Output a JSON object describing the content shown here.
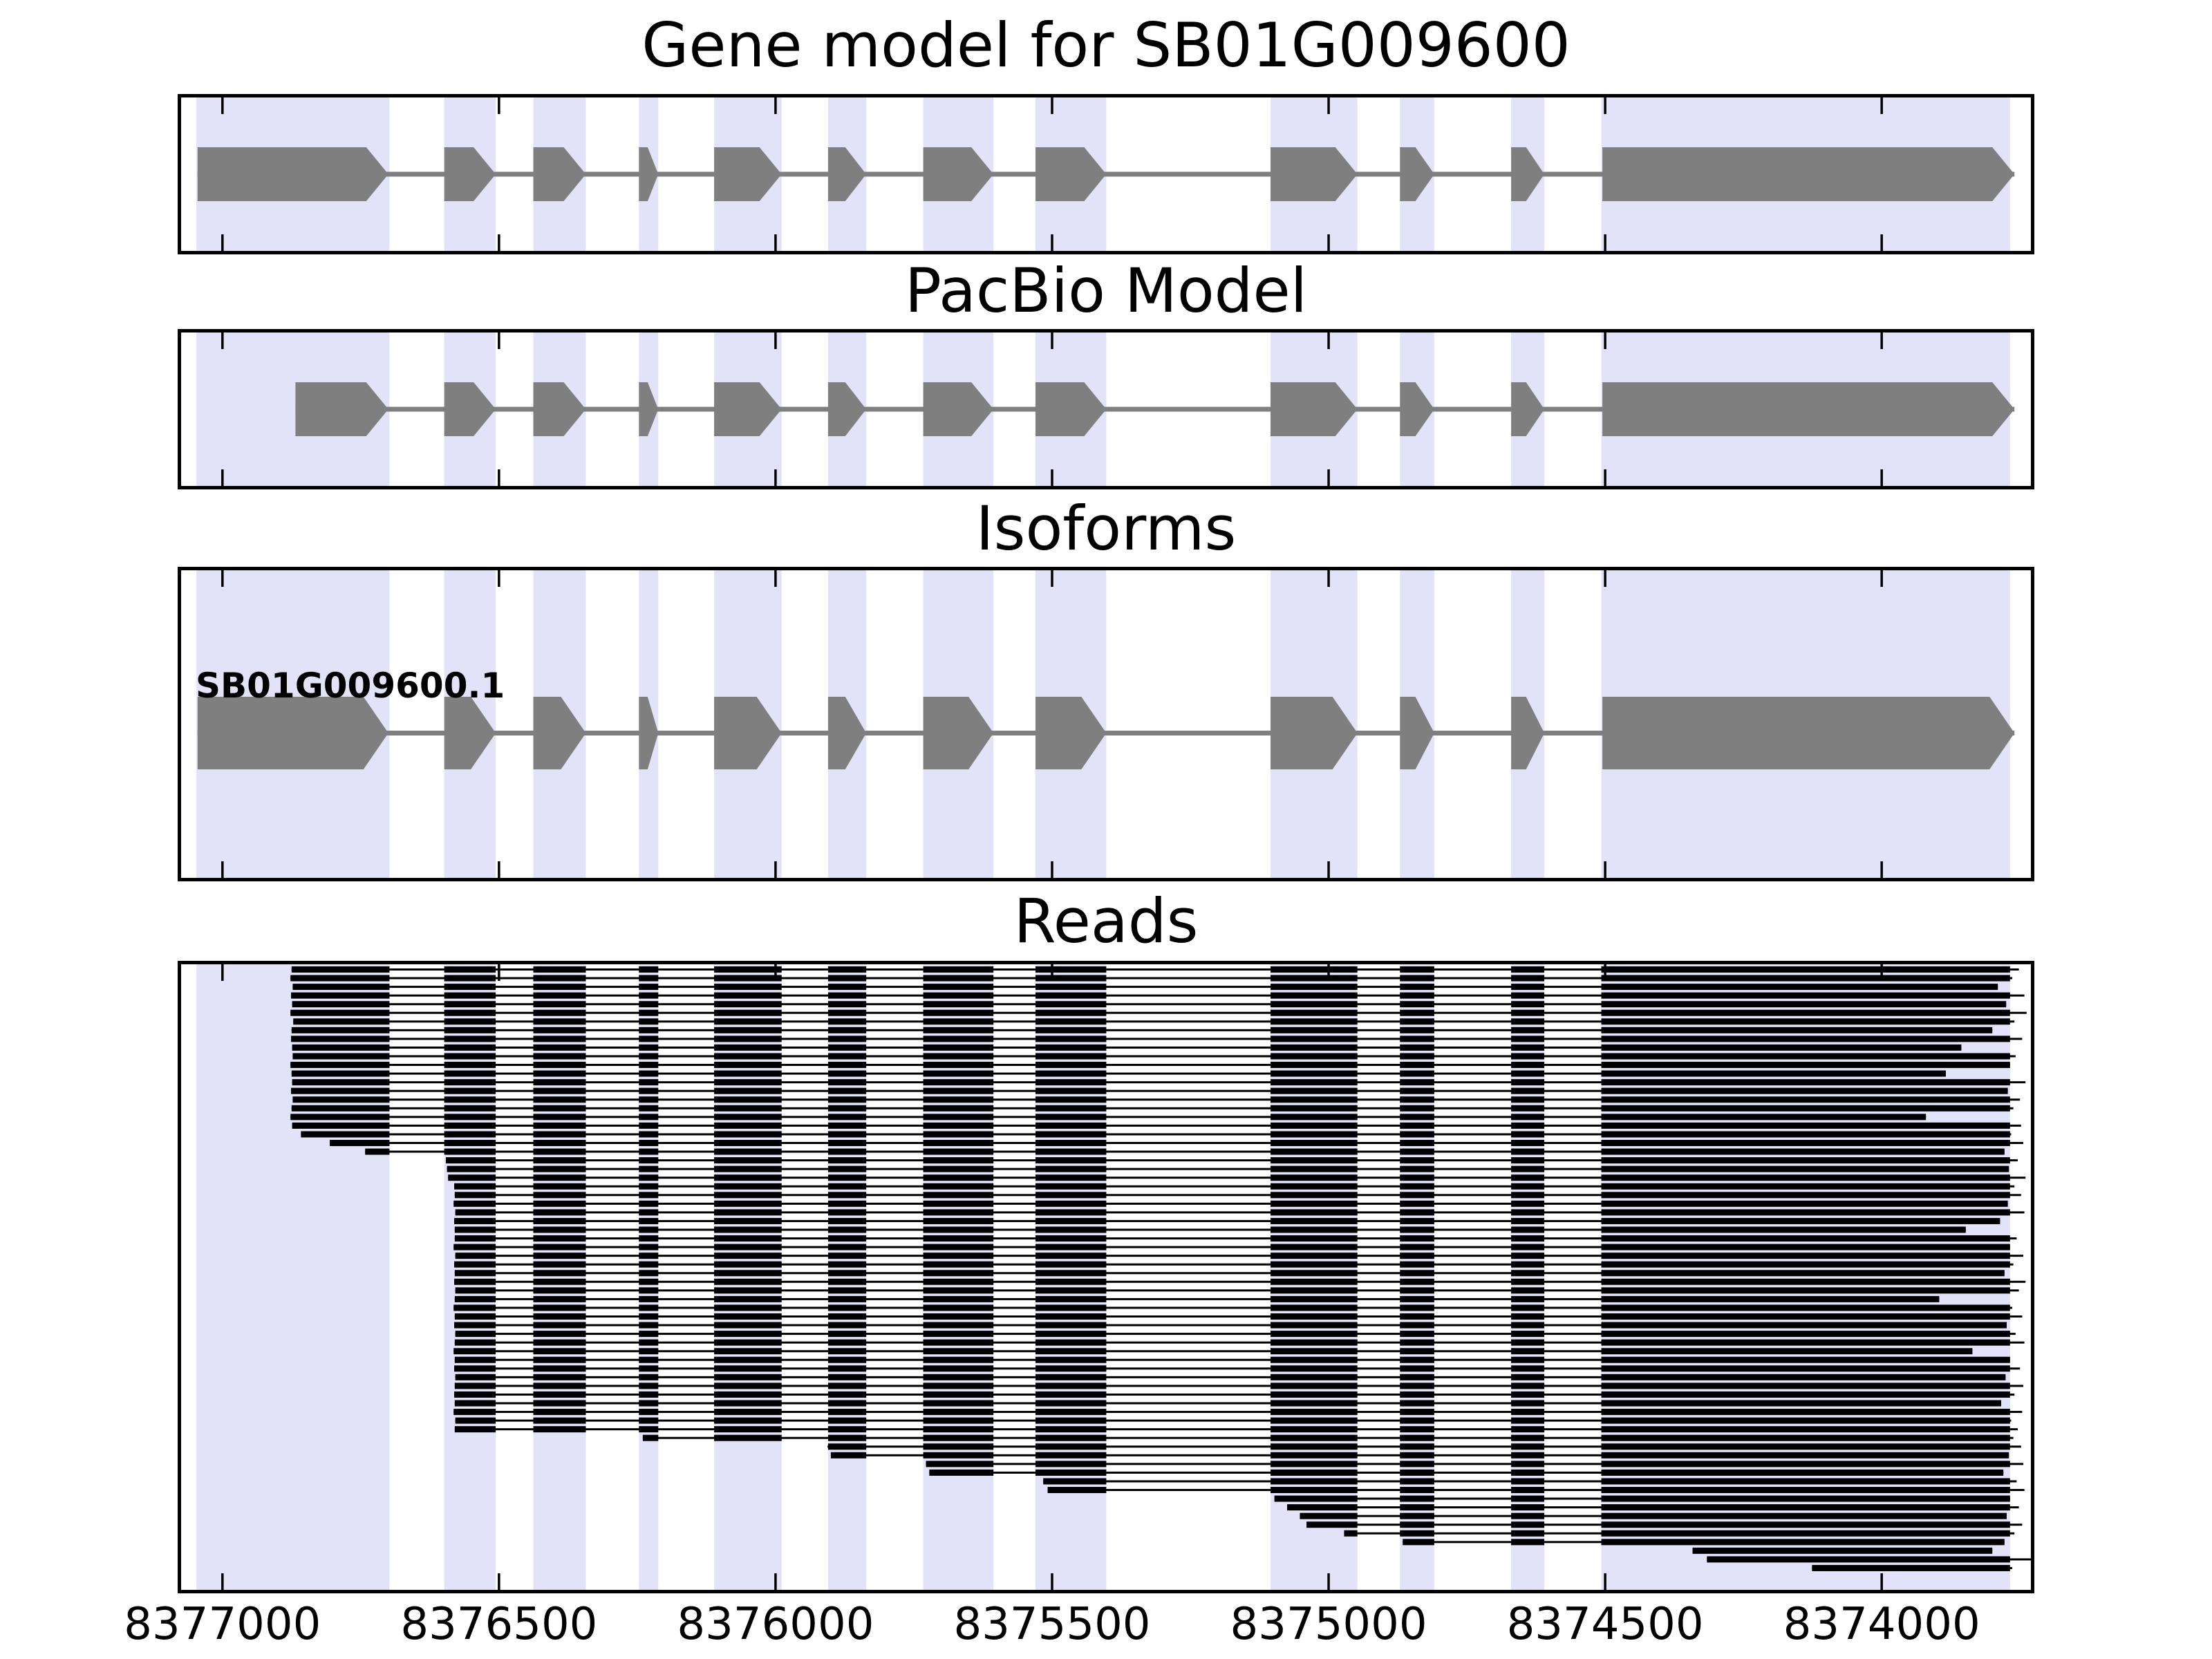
{
  "titles": {
    "gene": "Gene model for SB01G009600",
    "pacbio": "PacBio Model",
    "isoforms": "Isoforms",
    "reads": "Reads"
  },
  "isoform_label": "SB01G009600.1",
  "colors": {
    "highlight_band": "#e2e2f9",
    "exon_gray": "#7f7f7f",
    "read_black": "#000000",
    "border": "#000000",
    "background": "#ffffff"
  },
  "chart_data": {
    "type": "gene-model-tracks",
    "title": "Gene model for SB01G009600",
    "x_axis": {
      "left_value": 8377081,
      "right_value": 8373724,
      "direction": "decreasing",
      "tick_values": [
        8377000,
        8376500,
        8376000,
        8375500,
        8375000,
        8374500,
        8374000
      ],
      "tick_labels": [
        "8377000",
        "8376500",
        "8376000",
        "8375500",
        "8375000",
        "8374500",
        "8374000"
      ]
    },
    "highlight_regions": [
      [
        8377047,
        8376698
      ],
      [
        8376599,
        8376506
      ],
      [
        8376438,
        8376343
      ],
      [
        8376247,
        8376212
      ],
      [
        8376111,
        8375989
      ],
      [
        8375905,
        8375836
      ],
      [
        8375733,
        8375606
      ],
      [
        8375530,
        8375402
      ],
      [
        8375105,
        8374948
      ],
      [
        8374871,
        8374809
      ],
      [
        8374670,
        8374610
      ],
      [
        8374507,
        8373768
      ]
    ],
    "tracks": {
      "gene_model": {
        "title": "Gene model for SB01G009600",
        "strand": "right",
        "exons": [
          [
            8377045,
            8376700
          ],
          [
            8376599,
            8376506
          ],
          [
            8376438,
            8376343
          ],
          [
            8376247,
            8376212
          ],
          [
            8376111,
            8375989
          ],
          [
            8375905,
            8375836
          ],
          [
            8375733,
            8375606
          ],
          [
            8375530,
            8375402
          ],
          [
            8375105,
            8374948
          ],
          [
            8374871,
            8374809
          ],
          [
            8374670,
            8374610
          ],
          [
            8374505,
            8373760
          ]
        ]
      },
      "pacbio_model": {
        "title": "PacBio Model",
        "strand": "right",
        "exons": [
          [
            8376868,
            8376700
          ],
          [
            8376599,
            8376506
          ],
          [
            8376438,
            8376343
          ],
          [
            8376247,
            8376212
          ],
          [
            8376111,
            8375989
          ],
          [
            8375905,
            8375836
          ],
          [
            8375733,
            8375606
          ],
          [
            8375530,
            8375402
          ],
          [
            8375105,
            8374948
          ],
          [
            8374871,
            8374809
          ],
          [
            8374670,
            8374610
          ],
          [
            8374505,
            8373760
          ]
        ]
      },
      "isoforms": {
        "title": "Isoforms",
        "label": "SB01G009600.1",
        "strand": "right",
        "exons": [
          [
            8377045,
            8376700
          ],
          [
            8376599,
            8376506
          ],
          [
            8376438,
            8376343
          ],
          [
            8376247,
            8376212
          ],
          [
            8376111,
            8375989
          ],
          [
            8375905,
            8375836
          ],
          [
            8375733,
            8375606
          ],
          [
            8375530,
            8375402
          ],
          [
            8375105,
            8374948
          ],
          [
            8374871,
            8374809
          ],
          [
            8374670,
            8374610
          ],
          [
            8374505,
            8373760
          ]
        ]
      }
    },
    "reads": [
      [
        8376875,
        8373752
      ],
      [
        8376877,
        8373764
      ],
      [
        8376873,
        8373790
      ],
      [
        8376876,
        8373742
      ],
      [
        8376874,
        8373775
      ],
      [
        8376877,
        8373738
      ],
      [
        8376872,
        8373760
      ],
      [
        8376875,
        8373800
      ],
      [
        8376876,
        8373746
      ],
      [
        8376874,
        8373856
      ],
      [
        8376873,
        8373758
      ],
      [
        8376877,
        8373768
      ],
      [
        8376875,
        8373884
      ],
      [
        8376874,
        8373740
      ],
      [
        8376876,
        8373772
      ],
      [
        8376873,
        8373750
      ],
      [
        8376875,
        8373762
      ],
      [
        8376877,
        8373920
      ],
      [
        8376874,
        8373748
      ],
      [
        8376858,
        8373766
      ],
      [
        8376806,
        8373744
      ],
      [
        8376742,
        8373778
      ],
      [
        8376596,
        8373754
      ],
      [
        8376594,
        8373770
      ],
      [
        8376592,
        8373740
      ],
      [
        8376581,
        8373760
      ],
      [
        8376580,
        8373748
      ],
      [
        8376582,
        8373772
      ],
      [
        8376579,
        8373742
      ],
      [
        8376581,
        8373786
      ],
      [
        8376580,
        8373848
      ],
      [
        8376580,
        8373756
      ],
      [
        8376582,
        8373768
      ],
      [
        8376579,
        8373744
      ],
      [
        8376581,
        8373762
      ],
      [
        8376580,
        8373778
      ],
      [
        8376581,
        8373740
      ],
      [
        8376579,
        8373752
      ],
      [
        8376580,
        8373896
      ],
      [
        8376582,
        8373764
      ],
      [
        8376580,
        8373746
      ],
      [
        8376581,
        8373774
      ],
      [
        8376579,
        8373758
      ],
      [
        8376580,
        8373742
      ],
      [
        8376582,
        8373836
      ],
      [
        8376580,
        8373768
      ],
      [
        8376581,
        8373750
      ],
      [
        8376579,
        8373776
      ],
      [
        8376580,
        8373744
      ],
      [
        8376581,
        8373760
      ],
      [
        8376580,
        8373784
      ],
      [
        8376582,
        8373746
      ],
      [
        8376579,
        8373766
      ],
      [
        8376580,
        8373754
      ],
      [
        8376240,
        8373762
      ],
      [
        8375906,
        8373748
      ],
      [
        8375900,
        8373770
      ],
      [
        8375728,
        8373744
      ],
      [
        8375722,
        8373780
      ],
      [
        8375516,
        8373756
      ],
      [
        8375508,
        8373742
      ],
      [
        8375098,
        8373768
      ],
      [
        8375075,
        8373752
      ],
      [
        8375052,
        8373774
      ],
      [
        8375040,
        8373746
      ],
      [
        8374972,
        8373760
      ],
      [
        8374866,
        8373778
      ],
      [
        8374342,
        8373800
      ],
      [
        8374316,
        8373720
      ],
      [
        8374126,
        8373764
      ]
    ]
  }
}
